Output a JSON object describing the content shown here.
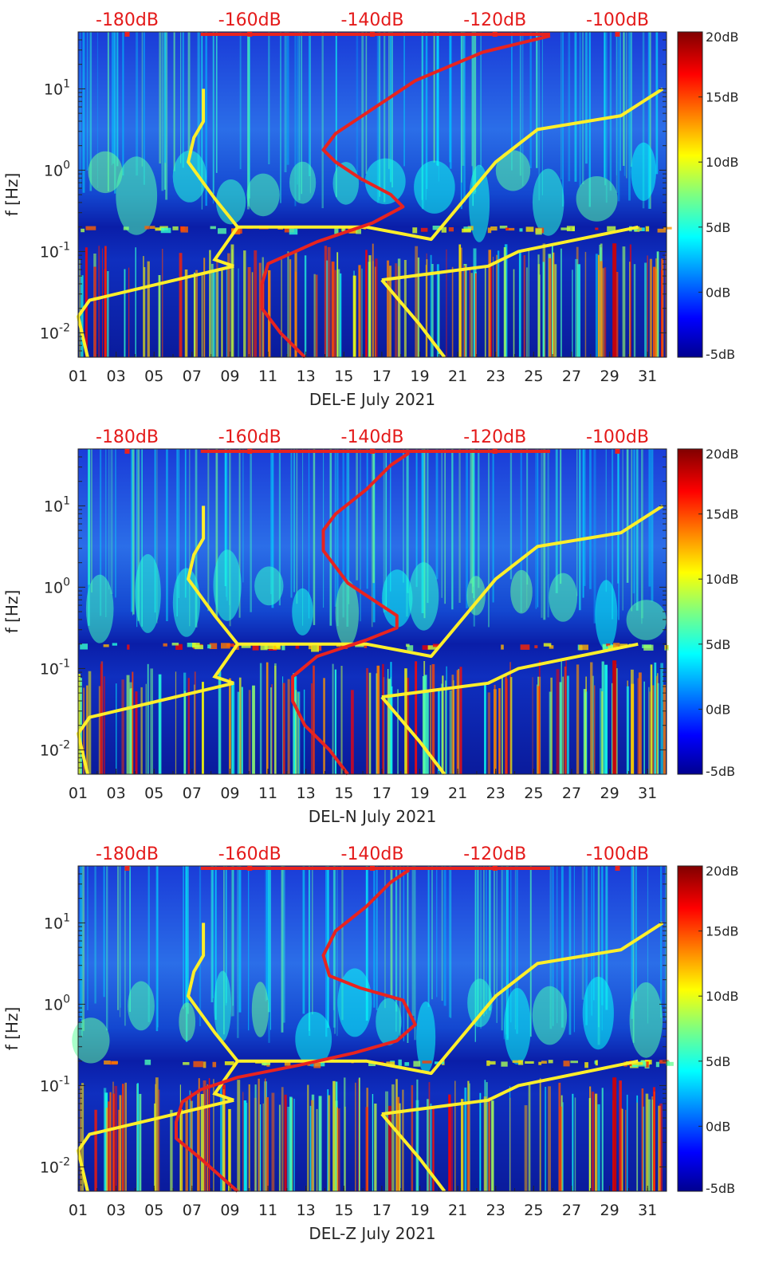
{
  "colors": {
    "spectrum_low": "#00008f",
    "spectrum_high": "#800000",
    "yellow_curve": "#ffef2a",
    "red_curve": "#e8231f",
    "top_label": "#e41a1a",
    "axis": "#262626"
  },
  "chart_data": [
    {
      "type": "heatmap",
      "title": "",
      "station": "DEL-E",
      "xlabel": "DEL-E July 2021",
      "ylabel": "f [Hz]",
      "x_ticks": [
        "01",
        "03",
        "05",
        "07",
        "09",
        "11",
        "13",
        "15",
        "17",
        "19",
        "21",
        "23",
        "25",
        "27",
        "29",
        "31"
      ],
      "x_range_day": [
        1,
        32
      ],
      "y_ticks": [
        "10^-2",
        "10^-1",
        "10^0",
        "10^1"
      ],
      "y_range_log10_hz": [
        -2.3,
        1.7
      ],
      "top_axis_ticks": [
        "-180dB",
        "-160dB",
        "-140dB",
        "-120dB",
        "-100dB"
      ],
      "top_axis_range_db": [
        -188,
        -92
      ],
      "colorbar_ticks": [
        "20dB",
        "15dB",
        "10dB",
        "5dB",
        "0dB",
        "-5dB"
      ],
      "colorbar_range_db": [
        -5,
        20
      ],
      "yellow_high_noise_model": [
        [
          7.6,
          1.0
        ],
        [
          7.6,
          0.6
        ],
        [
          7.1,
          0.4
        ],
        [
          6.8,
          0.1
        ],
        [
          8.2,
          -0.35
        ],
        [
          9.4,
          -0.7
        ],
        [
          16.2,
          -0.7
        ],
        [
          19.6,
          -0.85
        ],
        [
          23.0,
          0.1
        ],
        [
          25.2,
          0.5
        ],
        [
          29.6,
          0.67
        ],
        [
          31.8,
          1.0
        ]
      ],
      "yellow_low_noise_model": [
        [
          9.2,
          -1.18
        ],
        [
          1.6,
          -1.6
        ],
        [
          1.0,
          -1.8
        ],
        [
          1.2,
          -2.0
        ],
        [
          1.5,
          -2.3
        ]
      ],
      "yellow_lower_branch": [
        [
          17.0,
          -1.35
        ],
        [
          22.6,
          -1.18
        ],
        [
          24.2,
          -1.0
        ],
        [
          30.5,
          -0.7
        ]
      ],
      "yellow_bottom_branch": [
        [
          17.0,
          -1.35
        ],
        [
          19.0,
          -1.9
        ],
        [
          20.3,
          -2.3
        ]
      ],
      "red_median_psd_db": [
        [
          -111,
          1.65
        ],
        [
          -122,
          1.45
        ],
        [
          -133,
          1.1
        ],
        [
          -141,
          0.7
        ],
        [
          -146,
          0.45
        ],
        [
          -148,
          0.25
        ],
        [
          -146,
          0.1
        ],
        [
          -142,
          -0.1
        ],
        [
          -137,
          -0.3
        ],
        [
          -135,
          -0.45
        ],
        [
          -140,
          -0.65
        ],
        [
          -149,
          -0.88
        ],
        [
          -157,
          -1.15
        ],
        [
          -158,
          -1.4
        ],
        [
          -158,
          -1.7
        ],
        [
          -155,
          -2.0
        ],
        [
          -151,
          -2.3
        ]
      ]
    },
    {
      "type": "heatmap",
      "title": "",
      "station": "DEL-N",
      "xlabel": "DEL-N July 2021",
      "ylabel": "f [Hz]",
      "x_ticks": [
        "01",
        "03",
        "05",
        "07",
        "09",
        "11",
        "13",
        "15",
        "17",
        "19",
        "21",
        "23",
        "25",
        "27",
        "29",
        "31"
      ],
      "x_range_day": [
        1,
        32
      ],
      "y_ticks": [
        "10^-2",
        "10^-1",
        "10^0",
        "10^1"
      ],
      "y_range_log10_hz": [
        -2.3,
        1.7
      ],
      "top_axis_ticks": [
        "-180dB",
        "-160dB",
        "-140dB",
        "-120dB",
        "-100dB"
      ],
      "top_axis_range_db": [
        -188,
        -92
      ],
      "colorbar_ticks": [
        "20dB",
        "15dB",
        "10dB",
        "5dB",
        "0dB",
        "-5dB"
      ],
      "colorbar_range_db": [
        -5,
        20
      ],
      "yellow_high_noise_model": [
        [
          7.6,
          1.0
        ],
        [
          7.6,
          0.6
        ],
        [
          7.1,
          0.4
        ],
        [
          6.8,
          0.1
        ],
        [
          8.2,
          -0.35
        ],
        [
          9.4,
          -0.7
        ],
        [
          16.2,
          -0.7
        ],
        [
          19.6,
          -0.85
        ],
        [
          23.0,
          0.1
        ],
        [
          25.2,
          0.5
        ],
        [
          29.6,
          0.67
        ],
        [
          31.8,
          1.0
        ]
      ],
      "yellow_low_noise_model": [
        [
          9.2,
          -1.18
        ],
        [
          1.6,
          -1.6
        ],
        [
          1.0,
          -1.8
        ],
        [
          1.2,
          -2.0
        ],
        [
          1.5,
          -2.3
        ]
      ],
      "yellow_lower_branch": [
        [
          17.0,
          -1.35
        ],
        [
          22.6,
          -1.18
        ],
        [
          24.2,
          -1.0
        ],
        [
          30.5,
          -0.7
        ]
      ],
      "yellow_bottom_branch": [
        [
          17.0,
          -1.35
        ],
        [
          19.0,
          -1.9
        ],
        [
          20.3,
          -2.3
        ]
      ],
      "red_median_psd_db": [
        [
          -134,
          1.65
        ],
        [
          -137,
          1.5
        ],
        [
          -141,
          1.2
        ],
        [
          -146,
          0.9
        ],
        [
          -148,
          0.7
        ],
        [
          -148,
          0.45
        ],
        [
          -146,
          0.25
        ],
        [
          -144,
          0.05
        ],
        [
          -140,
          -0.15
        ],
        [
          -136,
          -0.35
        ],
        [
          -136,
          -0.5
        ],
        [
          -141,
          -0.65
        ],
        [
          -149,
          -0.85
        ],
        [
          -153,
          -1.1
        ],
        [
          -153,
          -1.4
        ],
        [
          -151,
          -1.7
        ],
        [
          -147,
          -2.0
        ],
        [
          -144,
          -2.3
        ]
      ]
    },
    {
      "type": "heatmap",
      "title": "",
      "station": "DEL-Z",
      "xlabel": "DEL-Z July 2021",
      "ylabel": "f [Hz]",
      "x_ticks": [
        "01",
        "03",
        "05",
        "07",
        "09",
        "11",
        "13",
        "15",
        "17",
        "19",
        "21",
        "23",
        "25",
        "27",
        "29",
        "31"
      ],
      "x_range_day": [
        1,
        32
      ],
      "y_ticks": [
        "10^-2",
        "10^-1",
        "10^0",
        "10^1"
      ],
      "y_range_log10_hz": [
        -2.3,
        1.7
      ],
      "top_axis_ticks": [
        "-180dB",
        "-160dB",
        "-140dB",
        "-120dB",
        "-100dB"
      ],
      "top_axis_range_db": [
        -188,
        -92
      ],
      "colorbar_ticks": [
        "20dB",
        "15dB",
        "10dB",
        "5dB",
        "0dB",
        "-5dB"
      ],
      "colorbar_range_db": [
        -5,
        20
      ],
      "yellow_high_noise_model": [
        [
          7.6,
          1.0
        ],
        [
          7.6,
          0.6
        ],
        [
          7.1,
          0.4
        ],
        [
          6.8,
          0.1
        ],
        [
          8.2,
          -0.35
        ],
        [
          9.4,
          -0.7
        ],
        [
          16.2,
          -0.7
        ],
        [
          19.6,
          -0.85
        ],
        [
          23.0,
          0.1
        ],
        [
          25.2,
          0.5
        ],
        [
          29.6,
          0.67
        ],
        [
          31.8,
          1.0
        ]
      ],
      "yellow_low_noise_model": [
        [
          9.2,
          -1.18
        ],
        [
          1.6,
          -1.6
        ],
        [
          1.0,
          -1.8
        ],
        [
          1.2,
          -2.0
        ],
        [
          1.5,
          -2.3
        ]
      ],
      "yellow_lower_branch": [
        [
          17.0,
          -1.35
        ],
        [
          22.6,
          -1.18
        ],
        [
          24.2,
          -1.0
        ],
        [
          30.5,
          -0.7
        ]
      ],
      "yellow_bottom_branch": [
        [
          17.0,
          -1.35
        ],
        [
          19.0,
          -1.9
        ],
        [
          20.3,
          -2.3
        ]
      ],
      "red_median_psd_db": [
        [
          -134,
          1.65
        ],
        [
          -137,
          1.5
        ],
        [
          -141,
          1.2
        ],
        [
          -146,
          0.9
        ],
        [
          -148,
          0.6
        ],
        [
          -147,
          0.35
        ],
        [
          -142,
          0.2
        ],
        [
          -135,
          0.05
        ],
        [
          -133,
          -0.25
        ],
        [
          -136,
          -0.45
        ],
        [
          -143,
          -0.6
        ],
        [
          -152,
          -0.75
        ],
        [
          -162,
          -0.9
        ],
        [
          -168,
          -1.05
        ],
        [
          -171,
          -1.2
        ],
        [
          -172,
          -1.45
        ],
        [
          -172,
          -1.65
        ],
        [
          -168,
          -1.9
        ],
        [
          -165,
          -2.1
        ],
        [
          -162,
          -2.3
        ]
      ]
    }
  ]
}
